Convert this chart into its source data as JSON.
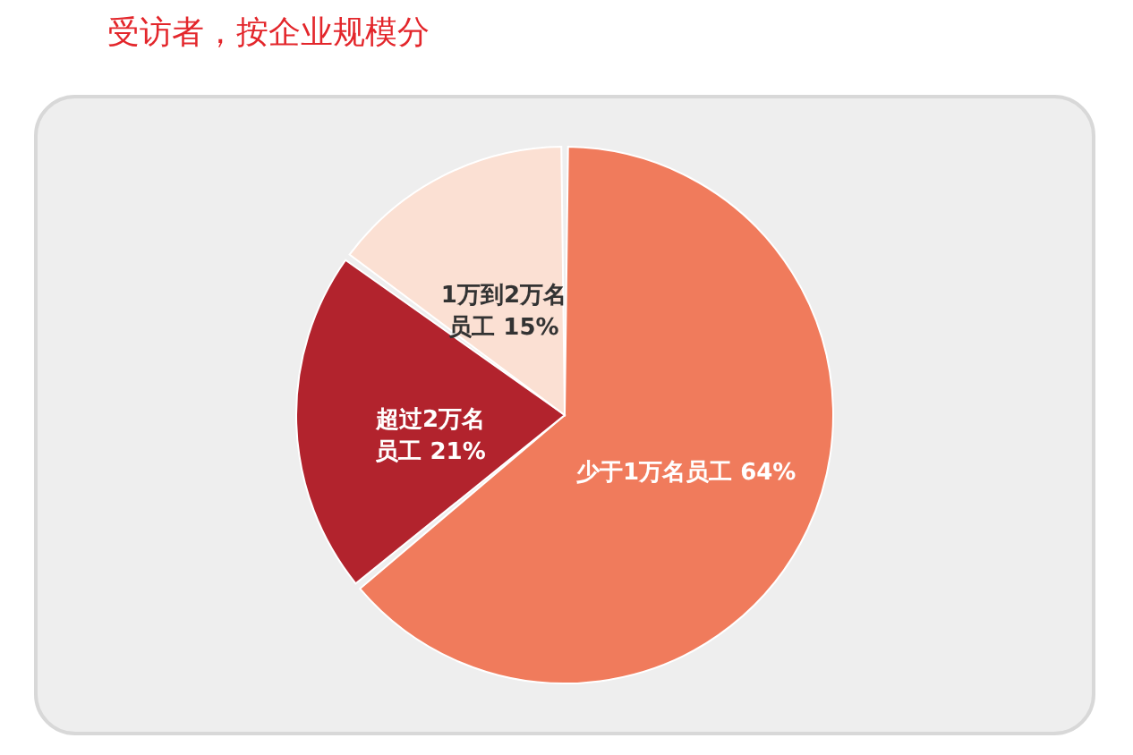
{
  "chart_data": {
    "type": "pie",
    "title": "受访者，按企业规模分",
    "categories": [
      "少于1万名员工",
      "超过2万名员工",
      "1万到2万名员工"
    ],
    "values": [
      64,
      21,
      15
    ],
    "colors": [
      "#f07b5c",
      "#b2232d",
      "#fbe0d3"
    ],
    "value_labels": [
      "64%",
      "21%",
      "15%"
    ]
  }
}
